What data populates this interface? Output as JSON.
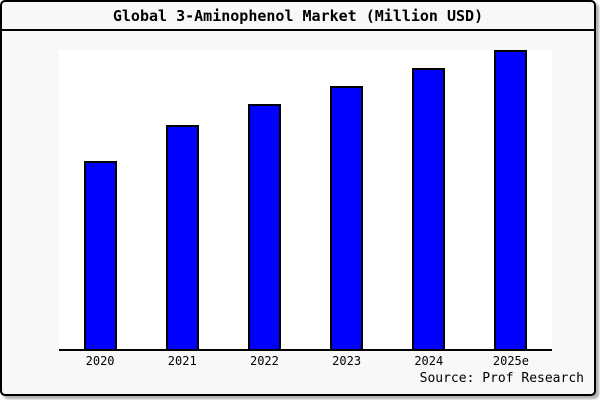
{
  "window": {
    "title": "Global 3-Aminophenol Market (Million USD)"
  },
  "chart_data": {
    "type": "bar",
    "title": "Global 3-Aminophenol Market (Million USD)",
    "categories": [
      "2020",
      "2021",
      "2022",
      "2023",
      "2024",
      "2025e"
    ],
    "values": [
      63,
      75,
      82,
      88,
      94,
      100
    ],
    "value_note": "no y-axis shown; bar heights estimated relative to tallest bar (2025e = 100)",
    "ylim": [
      0,
      100
    ],
    "xlabel": "",
    "ylabel": "",
    "grid": false,
    "legend": false,
    "bar_color": "#0000ff",
    "bar_border_color": "#000000",
    "plot_background": "#ffffff",
    "page_background": "#f8f8f8"
  },
  "footer": {
    "source": "Source: Prof Research"
  }
}
